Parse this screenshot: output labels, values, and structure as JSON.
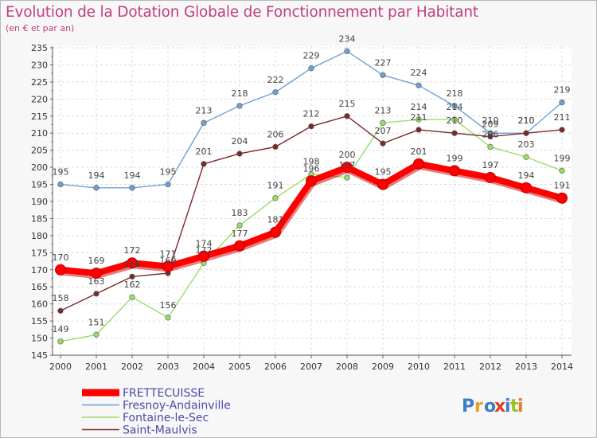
{
  "title": "Evolution de la Dotation Globale de Fonctionnement par Habitant",
  "subtitle": "(en € et par an)",
  "logo_text": "Proxiti",
  "chart_data": {
    "type": "line",
    "title": "Evolution de la Dotation Globale de Fonctionnement par Habitant",
    "subtitle": "(en € et par an)",
    "xlabel": "",
    "ylabel": "",
    "x": [
      "2000",
      "2001",
      "2002",
      "2003",
      "2004",
      "2005",
      "2006",
      "2007",
      "2008",
      "2009",
      "2010",
      "2011",
      "2012",
      "2013",
      "2014"
    ],
    "ylim": [
      145,
      235
    ],
    "yticks": [
      145,
      150,
      155,
      160,
      165,
      170,
      175,
      180,
      185,
      190,
      195,
      200,
      205,
      210,
      215,
      220,
      225,
      230,
      235
    ],
    "grid": true,
    "legend_position": "bottom-left",
    "series": [
      {
        "name": "FRETTECUISSE",
        "color": "#ff0000",
        "values": [
          170,
          169,
          172,
          171,
          174,
          177,
          181,
          196,
          200,
          195,
          201,
          199,
          197,
          194,
          191
        ]
      },
      {
        "name": "Fresnoy-Andainville",
        "color": "#6ea0d4",
        "values": [
          195,
          194,
          194,
          195,
          213,
          218,
          222,
          229,
          234,
          227,
          224,
          218,
          210,
          210,
          219
        ]
      },
      {
        "name": "Fontaine-le-Sec",
        "color": "#99dd66",
        "values": [
          149,
          151,
          162,
          156,
          172,
          183,
          191,
          198,
          197,
          213,
          214,
          214,
          206,
          203,
          199
        ]
      },
      {
        "name": "Saint-Maulvis",
        "color": "#7a2a2a",
        "values": [
          158,
          163,
          168,
          169,
          201,
          204,
          206,
          212,
          215,
          207,
          211,
          210,
          209,
          210,
          211
        ]
      }
    ]
  }
}
